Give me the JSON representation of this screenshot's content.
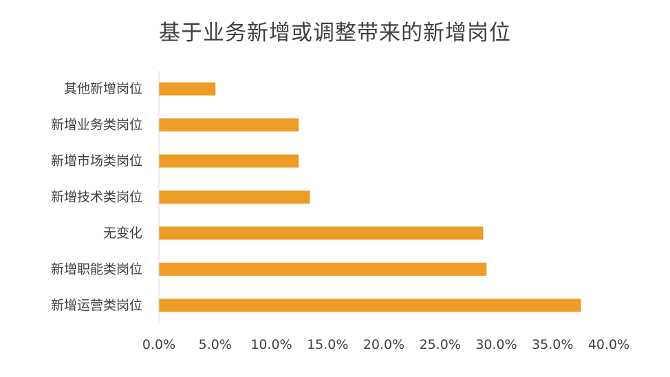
{
  "chart_data": {
    "type": "bar",
    "orientation": "horizontal",
    "title": "基于业务新增或调整带来的新增岗位",
    "categories": [
      "其他新增岗位",
      "新增业务类岗位",
      "新增市场类岗位",
      "新增技术类岗位",
      "无变化",
      "新增职能类岗位",
      "新增运营类岗位"
    ],
    "values": [
      5.0,
      12.4,
      12.4,
      13.4,
      28.8,
      29.1,
      37.5
    ],
    "xlim": [
      0,
      40
    ],
    "xticks": [
      "0.0%",
      "5.0%",
      "10.0%",
      "15.0%",
      "20.0%",
      "25.0%",
      "30.0%",
      "35.0%",
      "40.0%"
    ],
    "xlabel": "",
    "ylabel": "",
    "grid": false,
    "legend": "none",
    "bar_color": "#ed9c28",
    "axis_color": "#d9d9d9"
  }
}
